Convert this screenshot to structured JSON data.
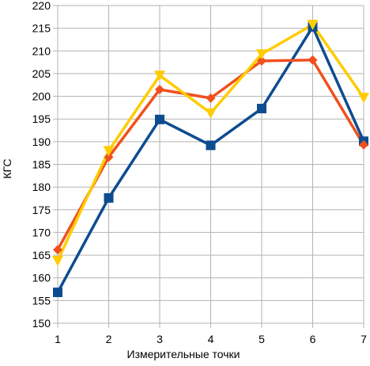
{
  "chart_data": {
    "type": "line",
    "title": "",
    "xlabel": "Измерительные точки",
    "ylabel": "КГС",
    "x": [
      1,
      2,
      3,
      4,
      5,
      6,
      7
    ],
    "ylim": [
      150,
      220
    ],
    "yticks": [
      150,
      155,
      160,
      165,
      170,
      175,
      180,
      185,
      190,
      195,
      200,
      205,
      210,
      215,
      220
    ],
    "grid": true,
    "legend": "none",
    "series": [
      {
        "color": "#0d4c8f",
        "marker": "square",
        "values": [
          156.8,
          177.6,
          194.9,
          189.2,
          197.3,
          215.3,
          190.1
        ]
      },
      {
        "color": "#f0501e",
        "marker": "diamond",
        "values": [
          166.2,
          186.6,
          201.5,
          199.6,
          207.8,
          208.0,
          189.3
        ]
      },
      {
        "color": "#ffcc00",
        "marker": "triangle-down",
        "values": [
          163.8,
          188.0,
          204.6,
          196.3,
          209.3,
          215.8,
          199.7
        ]
      }
    ]
  }
}
